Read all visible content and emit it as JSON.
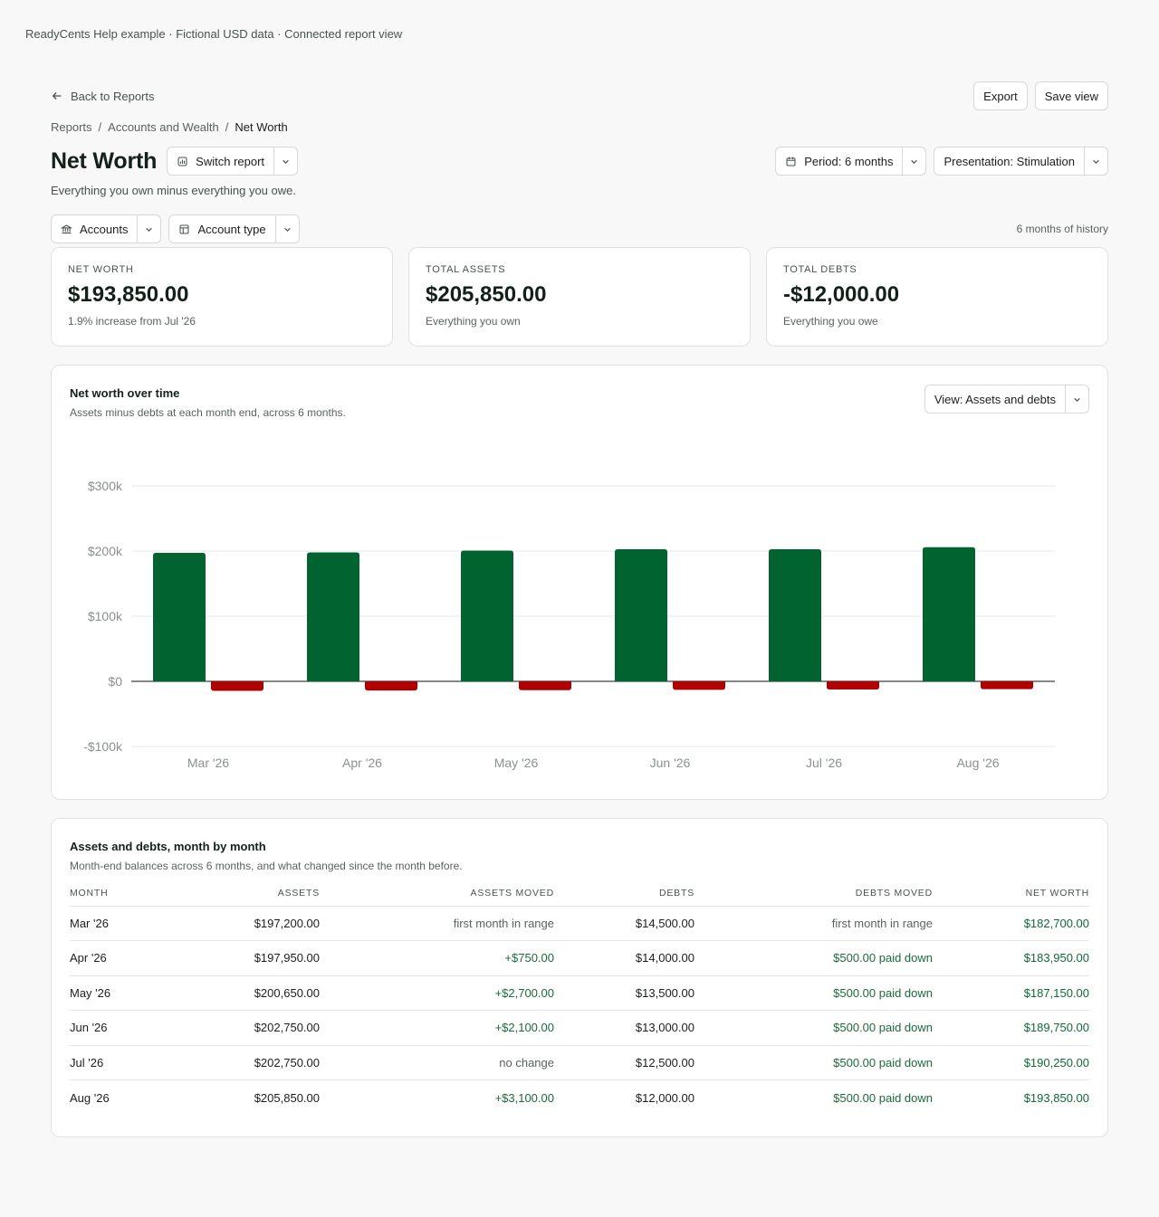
{
  "caption": "ReadyCents Help example · Fictional USD data · Connected report view",
  "nav": {
    "back_label": "Back to Reports",
    "export_label": "Export",
    "save_view_label": "Save view"
  },
  "breadcrumb": [
    "Reports",
    "Accounts and Wealth",
    "Net Worth"
  ],
  "page": {
    "title": "Net Worth",
    "switch_report_label": "Switch report",
    "period_label": "Period: 6 months",
    "presentation_label": "Presentation: Stimulation",
    "subtitle": "Everything you own minus everything you owe."
  },
  "filters": {
    "accounts_label": "Accounts",
    "account_type_label": "Account type",
    "history_label": "6 months of history"
  },
  "cards": [
    {
      "label": "NET WORTH",
      "value": "$193,850.00",
      "note": "1.9% increase from Jul '26"
    },
    {
      "label": "TOTAL ASSETS",
      "value": "$205,850.00",
      "note": "Everything you own"
    },
    {
      "label": "TOTAL DEBTS",
      "value": "-$12,000.00",
      "note": "Everything you owe"
    }
  ],
  "chart_panel": {
    "title": "Net worth over time",
    "subtitle": "Assets minus debts at each month end, across 6 months.",
    "view_label": "View: Assets and debts"
  },
  "chart_data": {
    "type": "bar",
    "categories": [
      "Mar '26",
      "Apr '26",
      "May '26",
      "Jun '26",
      "Jul '26",
      "Aug '26"
    ],
    "series": [
      {
        "name": "Assets",
        "values": [
          197200,
          197950,
          200650,
          202750,
          202750,
          205850
        ],
        "color": "#006330"
      },
      {
        "name": "Debts",
        "values": [
          -14500,
          -14000,
          -13500,
          -13000,
          -12500,
          -12000
        ],
        "color": "#b10000"
      }
    ],
    "y_ticks": [
      300000,
      200000,
      100000,
      0,
      -100000
    ],
    "y_tick_labels": [
      "$300k",
      "$200k",
      "$100k",
      "$0",
      "-$100k"
    ],
    "ylim": [
      -100000,
      300000
    ],
    "grid": true
  },
  "table_panel": {
    "title": "Assets and debts, month by month",
    "subtitle": "Month-end balances across 6 months, and what changed since the month before.",
    "headers": [
      "MONTH",
      "ASSETS",
      "ASSETS MOVED",
      "DEBTS",
      "DEBTS MOVED",
      "NET WORTH"
    ],
    "rows": [
      [
        "Mar '26",
        "$197,200.00",
        "first month in range",
        "$14,500.00",
        "first month in range",
        "$182,700.00"
      ],
      [
        "Apr '26",
        "$197,950.00",
        "+$750.00",
        "$14,000.00",
        "$500.00 paid down",
        "$183,950.00"
      ],
      [
        "May '26",
        "$200,650.00",
        "+$2,700.00",
        "$13,500.00",
        "$500.00 paid down",
        "$187,150.00"
      ],
      [
        "Jun '26",
        "$202,750.00",
        "+$2,100.00",
        "$13,000.00",
        "$500.00 paid down",
        "$189,750.00"
      ],
      [
        "Jul '26",
        "$202,750.00",
        "no change",
        "$12,500.00",
        "$500.00 paid down",
        "$190,250.00"
      ],
      [
        "Aug '26",
        "$205,850.00",
        "+$3,100.00",
        "$12,000.00",
        "$500.00 paid down",
        "$193,850.00"
      ]
    ]
  }
}
